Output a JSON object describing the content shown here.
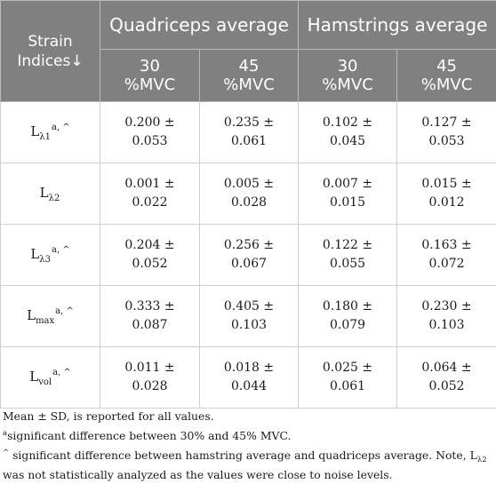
{
  "header": {
    "strain_line1": "Strain",
    "strain_line2": "Indices↓",
    "quadriceps": "Quadriceps average",
    "hamstrings": "Hamstrings average",
    "sub": [
      {
        "pct": "30",
        "unit": "%MVC"
      },
      {
        "pct": "45",
        "unit": "%MVC"
      },
      {
        "pct": "30",
        "unit": "%MVC"
      },
      {
        "pct": "45",
        "unit": "%MVC"
      }
    ]
  },
  "rows": [
    {
      "base": "L",
      "sub": "λ1",
      "sup": "a, ^",
      "cells": [
        [
          "0.200 ±",
          "0.053"
        ],
        [
          "0.235 ±",
          "0.061"
        ],
        [
          "0.102 ±",
          "0.045"
        ],
        [
          "0.127 ±",
          "0.053"
        ]
      ]
    },
    {
      "base": "L",
      "sub": "λ2",
      "sup": "",
      "cells": [
        [
          "0.001 ±",
          "0.022"
        ],
        [
          "0.005 ±",
          "0.028"
        ],
        [
          "0.007 ±",
          "0.015"
        ],
        [
          "0.015 ±",
          "0.012"
        ]
      ]
    },
    {
      "base": "L",
      "sub": "λ3",
      "sup": "a, ^",
      "cells": [
        [
          "0.204 ±",
          "0.052"
        ],
        [
          "0.256 ±",
          "0.067"
        ],
        [
          "0.122 ±",
          "0.055"
        ],
        [
          "0.163 ±",
          "0.072"
        ]
      ]
    },
    {
      "base": "L",
      "sub": "max",
      "sup": "a, ^",
      "cells": [
        [
          "0.333 ±",
          "0.087"
        ],
        [
          "0.405 ±",
          "0.103"
        ],
        [
          "0.180 ±",
          "0.079"
        ],
        [
          "0.230 ±",
          "0.103"
        ]
      ]
    },
    {
      "base": "L",
      "sub": "vol",
      "sup": "a, ^",
      "cells": [
        [
          "0.011 ±",
          "0.028"
        ],
        [
          "0.018 ±",
          "0.044"
        ],
        [
          "0.025 ±",
          "0.061"
        ],
        [
          "0.064 ±",
          "0.052"
        ]
      ]
    }
  ],
  "notes": {
    "line1": "Mean ± SD, is reported for all values.",
    "a_mark": "a",
    "a_text": "significant difference between 30% and 45% MVC.",
    "caret_mark": "^",
    "caret_text1": " significant difference between hamstring average and quadriceps average. Note, L",
    "caret_sub": "λ2",
    "caret_text2": " was not statistically analyzed as the values were close to noise levels."
  }
}
